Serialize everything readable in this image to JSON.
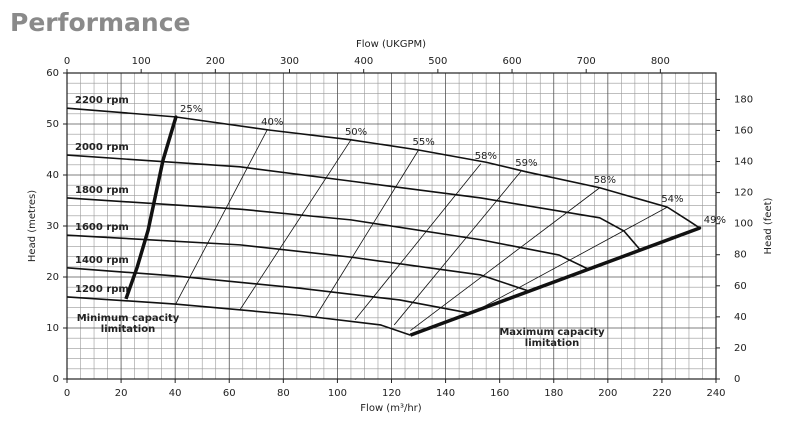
{
  "title": "Performance",
  "chart_data": {
    "type": "line",
    "xlabel": "Flow (m³/hr)",
    "ylabel": "Head (metres)",
    "x2label": "Flow (UKGPM)",
    "y2label": "Head (feet)",
    "xlim": [
      0,
      240
    ],
    "xticks": [
      0,
      20,
      40,
      60,
      80,
      100,
      120,
      140,
      160,
      180,
      200,
      220,
      240
    ],
    "ylim": [
      0,
      60
    ],
    "yticks": [
      0,
      10,
      20,
      30,
      40,
      50,
      60
    ],
    "x2lim": [
      0,
      875
    ],
    "x2ticks": [
      0,
      100,
      200,
      300,
      400,
      500,
      600,
      700,
      800
    ],
    "y2lim": [
      0,
      197
    ],
    "y2ticks": [
      0,
      20,
      40,
      60,
      80,
      100,
      120,
      140,
      160,
      180
    ],
    "grid": true,
    "color": "#111111",
    "series": [
      {
        "name": "2200 rpm",
        "x": [
          0,
          40,
          75,
          105,
          130,
          155,
          170,
          197,
          222,
          230,
          234
        ],
        "values": [
          53.1,
          51.4,
          48.8,
          46.9,
          44.9,
          42.5,
          40.6,
          37.5,
          33.7,
          31,
          29.6
        ]
      },
      {
        "name": "2000 rpm",
        "x": [
          0,
          64,
          105,
          153,
          197,
          206,
          212
        ],
        "values": [
          43.9,
          41.6,
          38.8,
          35.5,
          31.6,
          29,
          25.3
        ]
      },
      {
        "name": "1800 rpm",
        "x": [
          0,
          64,
          105,
          153,
          182,
          193
        ],
        "values": [
          35.5,
          33.3,
          31.2,
          27.3,
          24.3,
          21.5
        ]
      },
      {
        "name": "1600 rpm",
        "x": [
          0,
          64,
          105,
          153,
          171
        ],
        "values": [
          28.2,
          26.3,
          23.9,
          20.4,
          17.2
        ]
      },
      {
        "name": "1400 rpm",
        "x": [
          0,
          40,
          86,
          123,
          149
        ],
        "values": [
          21.8,
          20.2,
          17.8,
          15.5,
          12.9
        ]
      },
      {
        "name": "1200 rpm",
        "x": [
          0,
          40,
          86,
          116,
          127
        ],
        "values": [
          16.1,
          14.7,
          12.5,
          10.6,
          8.6
        ]
      }
    ],
    "efficiency": [
      {
        "name": "25%",
        "x": [
          40.3
        ],
        "values": [
          51.4
        ]
      },
      {
        "name": "40%",
        "x": [
          40,
          74
        ],
        "values": [
          14.5,
          48.8
        ]
      },
      {
        "name": "50%",
        "x": [
          64,
          105
        ],
        "values": [
          13.6,
          46.9
        ]
      },
      {
        "name": "55%",
        "x": [
          92,
          130
        ],
        "values": [
          12.3,
          44.9
        ]
      },
      {
        "name": "58%",
        "x": [
          106.5,
          153
        ],
        "values": [
          11.6,
          42.2
        ]
      },
      {
        "name": "59%",
        "x": [
          121,
          168
        ],
        "values": [
          10.6,
          40.8
        ]
      },
      {
        "name": "58%",
        "x": [
          127,
          197
        ],
        "values": [
          9.5,
          37.5
        ]
      },
      {
        "name": "54%",
        "x": [
          150,
          222
        ],
        "values": [
          13,
          33.7
        ]
      },
      {
        "name": "49%",
        "x": [
          234
        ],
        "values": [
          29.6
        ]
      }
    ],
    "limits": [
      {
        "label": [
          "Minimum capacity",
          "limitation"
        ],
        "x": [
          21.8,
          26,
          30,
          35.5,
          40.3
        ],
        "values": [
          15.7,
          22,
          29.2,
          42.9,
          51.4
        ]
      },
      {
        "label": [
          "Maximum capacity",
          "limitation"
        ],
        "x": [
          127,
          234
        ],
        "values": [
          8.6,
          29.6
        ]
      }
    ]
  }
}
